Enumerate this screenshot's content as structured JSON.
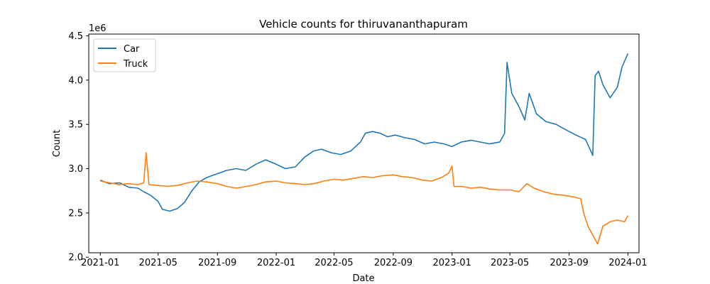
{
  "chart_data": {
    "type": "line",
    "title": "Vehicle counts for thiruvananthapuram",
    "xlabel": "Date",
    "ylabel": "Count",
    "y_offset_label": "1e6",
    "y_multiplier": 1000000,
    "xlim": [
      "2020-12-08",
      "2024-01-24"
    ],
    "ylim": [
      2.05,
      4.52
    ],
    "x_ticks": [
      "2021-01",
      "2021-05",
      "2021-09",
      "2022-01",
      "2022-05",
      "2022-09",
      "2023-01",
      "2023-05",
      "2023-09",
      "2024-01"
    ],
    "y_ticks": [
      2.0,
      2.5,
      3.0,
      3.5,
      4.0,
      4.5
    ],
    "y_tick_labels": [
      "2.0",
      "2.5",
      "3.0",
      "3.5",
      "4.0",
      "4.5"
    ],
    "grid": false,
    "legend_position": "upper-left",
    "series": [
      {
        "name": "Car",
        "color": "#1f77b4",
        "x": [
          "2021-01-01",
          "2021-01-20",
          "2021-02-10",
          "2021-03-01",
          "2021-03-20",
          "2021-04-01",
          "2021-04-15",
          "2021-05-01",
          "2021-05-10",
          "2021-05-25",
          "2021-06-10",
          "2021-06-25",
          "2021-07-10",
          "2021-07-25",
          "2021-08-10",
          "2021-08-25",
          "2021-09-05",
          "2021-09-20",
          "2021-10-10",
          "2021-10-30",
          "2021-11-20",
          "2021-12-10",
          "2022-01-01",
          "2022-01-20",
          "2022-02-10",
          "2022-03-01",
          "2022-03-20",
          "2022-04-05",
          "2022-04-25",
          "2022-05-15",
          "2022-06-05",
          "2022-06-25",
          "2022-07-05",
          "2022-07-20",
          "2022-08-05",
          "2022-08-20",
          "2022-09-05",
          "2022-09-25",
          "2022-10-15",
          "2022-11-05",
          "2022-11-25",
          "2022-12-15",
          "2023-01-01",
          "2023-01-20",
          "2023-02-10",
          "2023-03-01",
          "2023-03-20",
          "2023-04-10",
          "2023-04-20",
          "2023-04-25",
          "2023-05-05",
          "2023-05-20",
          "2023-06-01",
          "2023-06-10",
          "2023-06-25",
          "2023-07-15",
          "2023-08-05",
          "2023-08-25",
          "2023-09-15",
          "2023-10-05",
          "2023-10-20",
          "2023-10-25",
          "2023-11-01",
          "2023-11-10",
          "2023-11-25",
          "2023-12-10",
          "2023-12-20",
          "2024-01-01"
        ],
        "values": [
          2.87,
          2.83,
          2.84,
          2.79,
          2.78,
          2.74,
          2.7,
          2.63,
          2.54,
          2.52,
          2.55,
          2.62,
          2.75,
          2.85,
          2.9,
          2.93,
          2.95,
          2.98,
          3.0,
          2.98,
          3.05,
          3.1,
          3.05,
          3.0,
          3.02,
          3.13,
          3.2,
          3.22,
          3.18,
          3.16,
          3.2,
          3.3,
          3.4,
          3.42,
          3.4,
          3.36,
          3.38,
          3.35,
          3.33,
          3.28,
          3.3,
          3.28,
          3.25,
          3.3,
          3.32,
          3.3,
          3.28,
          3.3,
          3.4,
          4.2,
          3.85,
          3.7,
          3.55,
          3.85,
          3.62,
          3.53,
          3.5,
          3.44,
          3.38,
          3.33,
          3.15,
          4.05,
          4.1,
          3.95,
          3.8,
          3.92,
          4.15,
          4.3
        ]
      },
      {
        "name": "Truck",
        "color": "#ff7f0e",
        "x": [
          "2021-01-01",
          "2021-01-20",
          "2021-02-10",
          "2021-03-01",
          "2021-03-20",
          "2021-04-01",
          "2021-04-06",
          "2021-04-12",
          "2021-05-01",
          "2021-05-20",
          "2021-06-10",
          "2021-07-01",
          "2021-07-20",
          "2021-08-10",
          "2021-09-01",
          "2021-09-20",
          "2021-10-10",
          "2021-11-01",
          "2021-11-20",
          "2021-12-10",
          "2022-01-01",
          "2022-01-20",
          "2022-02-10",
          "2022-03-01",
          "2022-03-20",
          "2022-04-10",
          "2022-05-01",
          "2022-05-20",
          "2022-06-10",
          "2022-07-01",
          "2022-07-20",
          "2022-08-10",
          "2022-09-01",
          "2022-09-20",
          "2022-10-10",
          "2022-11-01",
          "2022-11-20",
          "2022-12-10",
          "2022-12-25",
          "2023-01-01",
          "2023-01-05",
          "2023-01-20",
          "2023-02-10",
          "2023-03-01",
          "2023-03-20",
          "2023-04-10",
          "2023-05-01",
          "2023-05-20",
          "2023-06-05",
          "2023-06-20",
          "2023-07-10",
          "2023-08-01",
          "2023-08-20",
          "2023-09-10",
          "2023-09-25",
          "2023-10-01",
          "2023-10-10",
          "2023-10-20",
          "2023-10-30",
          "2023-11-10",
          "2023-11-25",
          "2023-12-10",
          "2023-12-25",
          "2024-01-01"
        ],
        "values": [
          2.86,
          2.84,
          2.82,
          2.83,
          2.82,
          2.84,
          3.18,
          2.82,
          2.81,
          2.8,
          2.81,
          2.84,
          2.86,
          2.85,
          2.83,
          2.8,
          2.78,
          2.8,
          2.82,
          2.85,
          2.86,
          2.84,
          2.83,
          2.82,
          2.83,
          2.86,
          2.88,
          2.87,
          2.89,
          2.91,
          2.9,
          2.92,
          2.93,
          2.91,
          2.9,
          2.87,
          2.86,
          2.9,
          2.95,
          3.03,
          2.8,
          2.8,
          2.78,
          2.79,
          2.77,
          2.76,
          2.76,
          2.74,
          2.83,
          2.78,
          2.74,
          2.71,
          2.7,
          2.68,
          2.66,
          2.5,
          2.35,
          2.25,
          2.15,
          2.35,
          2.4,
          2.42,
          2.4,
          2.47
        ]
      }
    ]
  }
}
